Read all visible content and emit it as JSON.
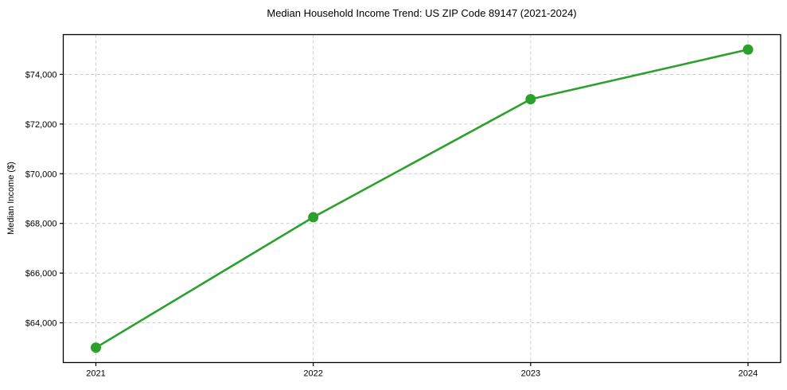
{
  "chart_data": {
    "type": "line",
    "title": "Median Household Income Trend: US ZIP Code 89147 (2021-2024)",
    "xlabel": "",
    "ylabel": "Median Income ($)",
    "x": [
      2021,
      2022,
      2023,
      2024
    ],
    "series": [
      {
        "values": [
          63000,
          68250,
          73000,
          75000
        ],
        "color": "#2ca02c",
        "marker": "circle"
      }
    ],
    "xlim": [
      2020.85,
      2024.15
    ],
    "ylim": [
      62400,
      75600
    ],
    "xticks": [
      {
        "value": 2021,
        "label": "2021"
      },
      {
        "value": 2022,
        "label": "2022"
      },
      {
        "value": 2023,
        "label": "2023"
      },
      {
        "value": 2024,
        "label": "2024"
      }
    ],
    "yticks": [
      {
        "value": 64000,
        "label": "$64,000"
      },
      {
        "value": 66000,
        "label": "$66,000"
      },
      {
        "value": 68000,
        "label": "$68,000"
      },
      {
        "value": 70000,
        "label": "$70,000"
      },
      {
        "value": 72000,
        "label": "$72,000"
      },
      {
        "value": 74000,
        "label": "$74,000"
      }
    ],
    "grid": true,
    "grid_style": "dashed",
    "grid_color": "#cccccc",
    "axis_color": "#000000",
    "background": "#ffffff",
    "legend": "none"
  }
}
